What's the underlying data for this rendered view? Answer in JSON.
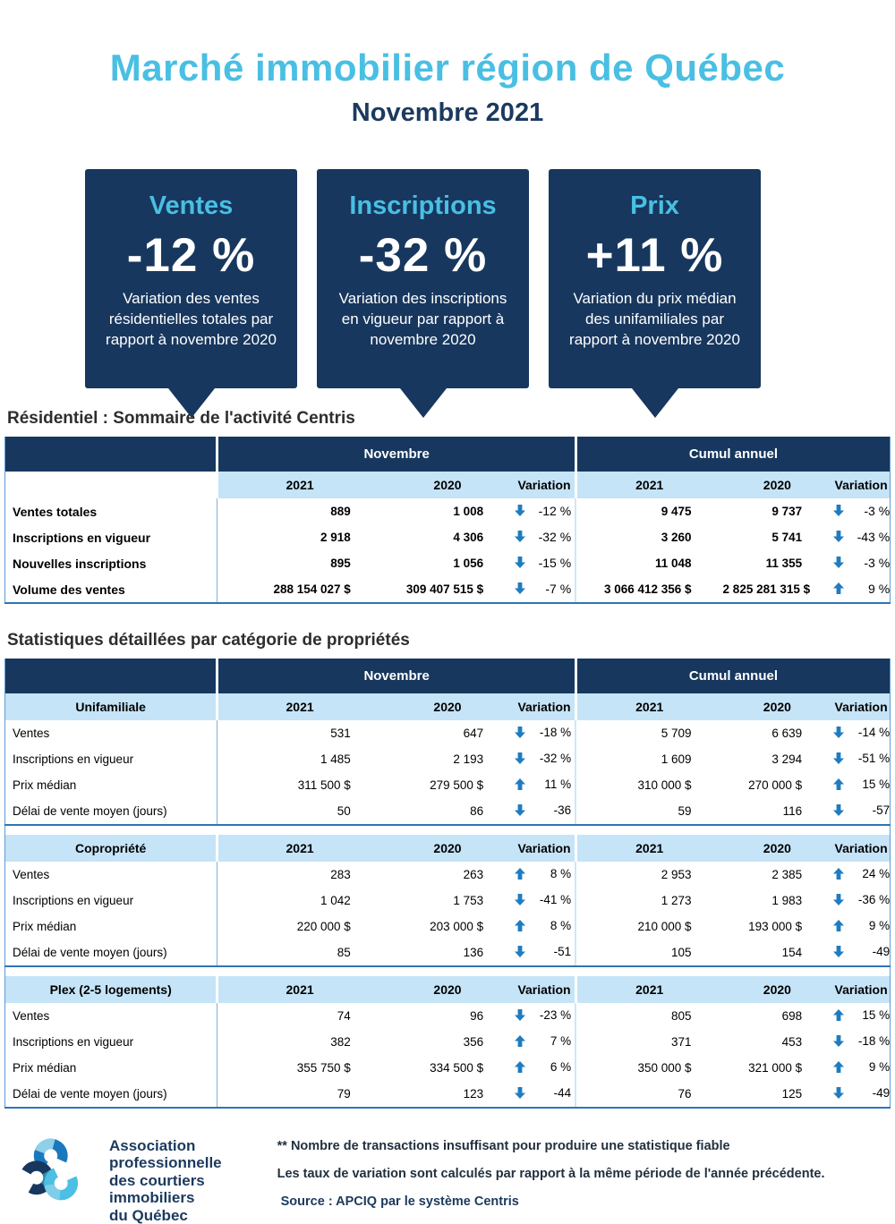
{
  "header": {
    "title": "Marché immobilier région de Québec",
    "subtitle": "Novembre 2021"
  },
  "cards": [
    {
      "label": "Ventes",
      "value": "-12 %",
      "description": "Variation des ventes résidentielles totales par rapport à novembre 2020"
    },
    {
      "label": "Inscriptions",
      "value": "-32 %",
      "description": "Variation des inscriptions en vigueur par rapport à novembre 2020"
    },
    {
      "label": "Prix",
      "value": "+11 %",
      "description": "Variation du prix médian des unifamiliales par rapport à novembre 2020"
    }
  ],
  "summary": {
    "title": "Résidentiel : Sommaire de l'activité Centris",
    "groups": [
      "Novembre",
      "Cumul annuel"
    ],
    "columns": [
      "2021",
      "2020",
      "Variation"
    ],
    "rows": [
      {
        "label": "Ventes totales",
        "nov": {
          "y2021": "889",
          "y2020": "1 008",
          "dir": "down",
          "var": "-12 %"
        },
        "cum": {
          "y2021": "9 475",
          "y2020": "9 737",
          "dir": "down",
          "var": "-3 %"
        }
      },
      {
        "label": "Inscriptions en vigueur",
        "nov": {
          "y2021": "2 918",
          "y2020": "4 306",
          "dir": "down",
          "var": "-32 %"
        },
        "cum": {
          "y2021": "3 260",
          "y2020": "5 741",
          "dir": "down",
          "var": "-43 %"
        }
      },
      {
        "label": "Nouvelles inscriptions",
        "nov": {
          "y2021": "895",
          "y2020": "1 056",
          "dir": "down",
          "var": "-15 %"
        },
        "cum": {
          "y2021": "11 048",
          "y2020": "11 355",
          "dir": "down",
          "var": "-3 %"
        }
      },
      {
        "label": "Volume des ventes",
        "nov": {
          "y2021": "288 154 027 $",
          "y2020": "309 407 515 $",
          "dir": "down",
          "var": "-7 %"
        },
        "cum": {
          "y2021": "3 066 412 356 $",
          "y2020": "2 825 281 315 $",
          "dir": "up",
          "var": "9 %"
        }
      }
    ]
  },
  "detail": {
    "title": "Statistiques détaillées par catégorie de propriétés",
    "groups": [
      "Novembre",
      "Cumul annuel"
    ],
    "columns": [
      "2021",
      "2020",
      "Variation"
    ],
    "categories": [
      {
        "name": "Unifamiliale",
        "rows": [
          {
            "label": "Ventes",
            "nov": {
              "y2021": "531",
              "y2020": "647",
              "dir": "down",
              "var": "-18 %"
            },
            "cum": {
              "y2021": "5 709",
              "y2020": "6 639",
              "dir": "down",
              "var": "-14 %"
            }
          },
          {
            "label": "Inscriptions en vigueur",
            "nov": {
              "y2021": "1 485",
              "y2020": "2 193",
              "dir": "down",
              "var": "-32 %"
            },
            "cum": {
              "y2021": "1 609",
              "y2020": "3 294",
              "dir": "down",
              "var": "-51 %"
            }
          },
          {
            "label": "Prix médian",
            "nov": {
              "y2021": "311 500 $",
              "y2020": "279 500 $",
              "dir": "up",
              "var": "11 %"
            },
            "cum": {
              "y2021": "310 000 $",
              "y2020": "270 000 $",
              "dir": "up",
              "var": "15 %"
            }
          },
          {
            "label": "Délai de vente moyen (jours)",
            "nov": {
              "y2021": "50",
              "y2020": "86",
              "dir": "down",
              "var": "-36"
            },
            "cum": {
              "y2021": "59",
              "y2020": "116",
              "dir": "down",
              "var": "-57"
            }
          }
        ]
      },
      {
        "name": "Copropriété",
        "rows": [
          {
            "label": "Ventes",
            "nov": {
              "y2021": "283",
              "y2020": "263",
              "dir": "up",
              "var": "8 %"
            },
            "cum": {
              "y2021": "2 953",
              "y2020": "2 385",
              "dir": "up",
              "var": "24 %"
            }
          },
          {
            "label": "Inscriptions en vigueur",
            "nov": {
              "y2021": "1 042",
              "y2020": "1 753",
              "dir": "down",
              "var": "-41 %"
            },
            "cum": {
              "y2021": "1 273",
              "y2020": "1 983",
              "dir": "down",
              "var": "-36 %"
            }
          },
          {
            "label": "Prix médian",
            "nov": {
              "y2021": "220 000 $",
              "y2020": "203 000 $",
              "dir": "up",
              "var": "8 %"
            },
            "cum": {
              "y2021": "210 000 $",
              "y2020": "193 000 $",
              "dir": "up",
              "var": "9 %"
            }
          },
          {
            "label": "Délai de vente moyen (jours)",
            "nov": {
              "y2021": "85",
              "y2020": "136",
              "dir": "down",
              "var": "-51"
            },
            "cum": {
              "y2021": "105",
              "y2020": "154",
              "dir": "down",
              "var": "-49"
            }
          }
        ]
      },
      {
        "name": "Plex (2-5 logements)",
        "rows": [
          {
            "label": "Ventes",
            "nov": {
              "y2021": "74",
              "y2020": "96",
              "dir": "down",
              "var": "-23 %"
            },
            "cum": {
              "y2021": "805",
              "y2020": "698",
              "dir": "up",
              "var": "15 %"
            }
          },
          {
            "label": "Inscriptions en vigueur",
            "nov": {
              "y2021": "382",
              "y2020": "356",
              "dir": "up",
              "var": "7 %"
            },
            "cum": {
              "y2021": "371",
              "y2020": "453",
              "dir": "down",
              "var": "-18 %"
            }
          },
          {
            "label": "Prix médian",
            "nov": {
              "y2021": "355 750 $",
              "y2020": "334 500 $",
              "dir": "up",
              "var": "6 %"
            },
            "cum": {
              "y2021": "350 000 $",
              "y2020": "321 000 $",
              "dir": "up",
              "var": "9 %"
            }
          },
          {
            "label": "Délai de vente moyen (jours)",
            "nov": {
              "y2021": "79",
              "y2020": "123",
              "dir": "down",
              "var": "-44"
            },
            "cum": {
              "y2021": "76",
              "y2020": "125",
              "dir": "down",
              "var": "-49"
            }
          }
        ]
      }
    ]
  },
  "footer": {
    "org_lines": [
      "Association",
      "professionnelle",
      "des courtiers",
      "immobiliers",
      "du Québec"
    ],
    "note_1": "** Nombre de transactions insuffisant pour produire une statistique fiable",
    "note_2": "Les taux de variation sont calculés par rapport à la même période de l'année précédente.",
    "source": "Source : APCIQ par le système Centris"
  },
  "colors": {
    "navy": "#17375E",
    "cyan": "#49BFE3",
    "medium_blue": "#1B78BE",
    "light_blue": "#C5E4F7",
    "arrow_blue": "#1F7CC0",
    "border_blue": "#2E75B6"
  }
}
